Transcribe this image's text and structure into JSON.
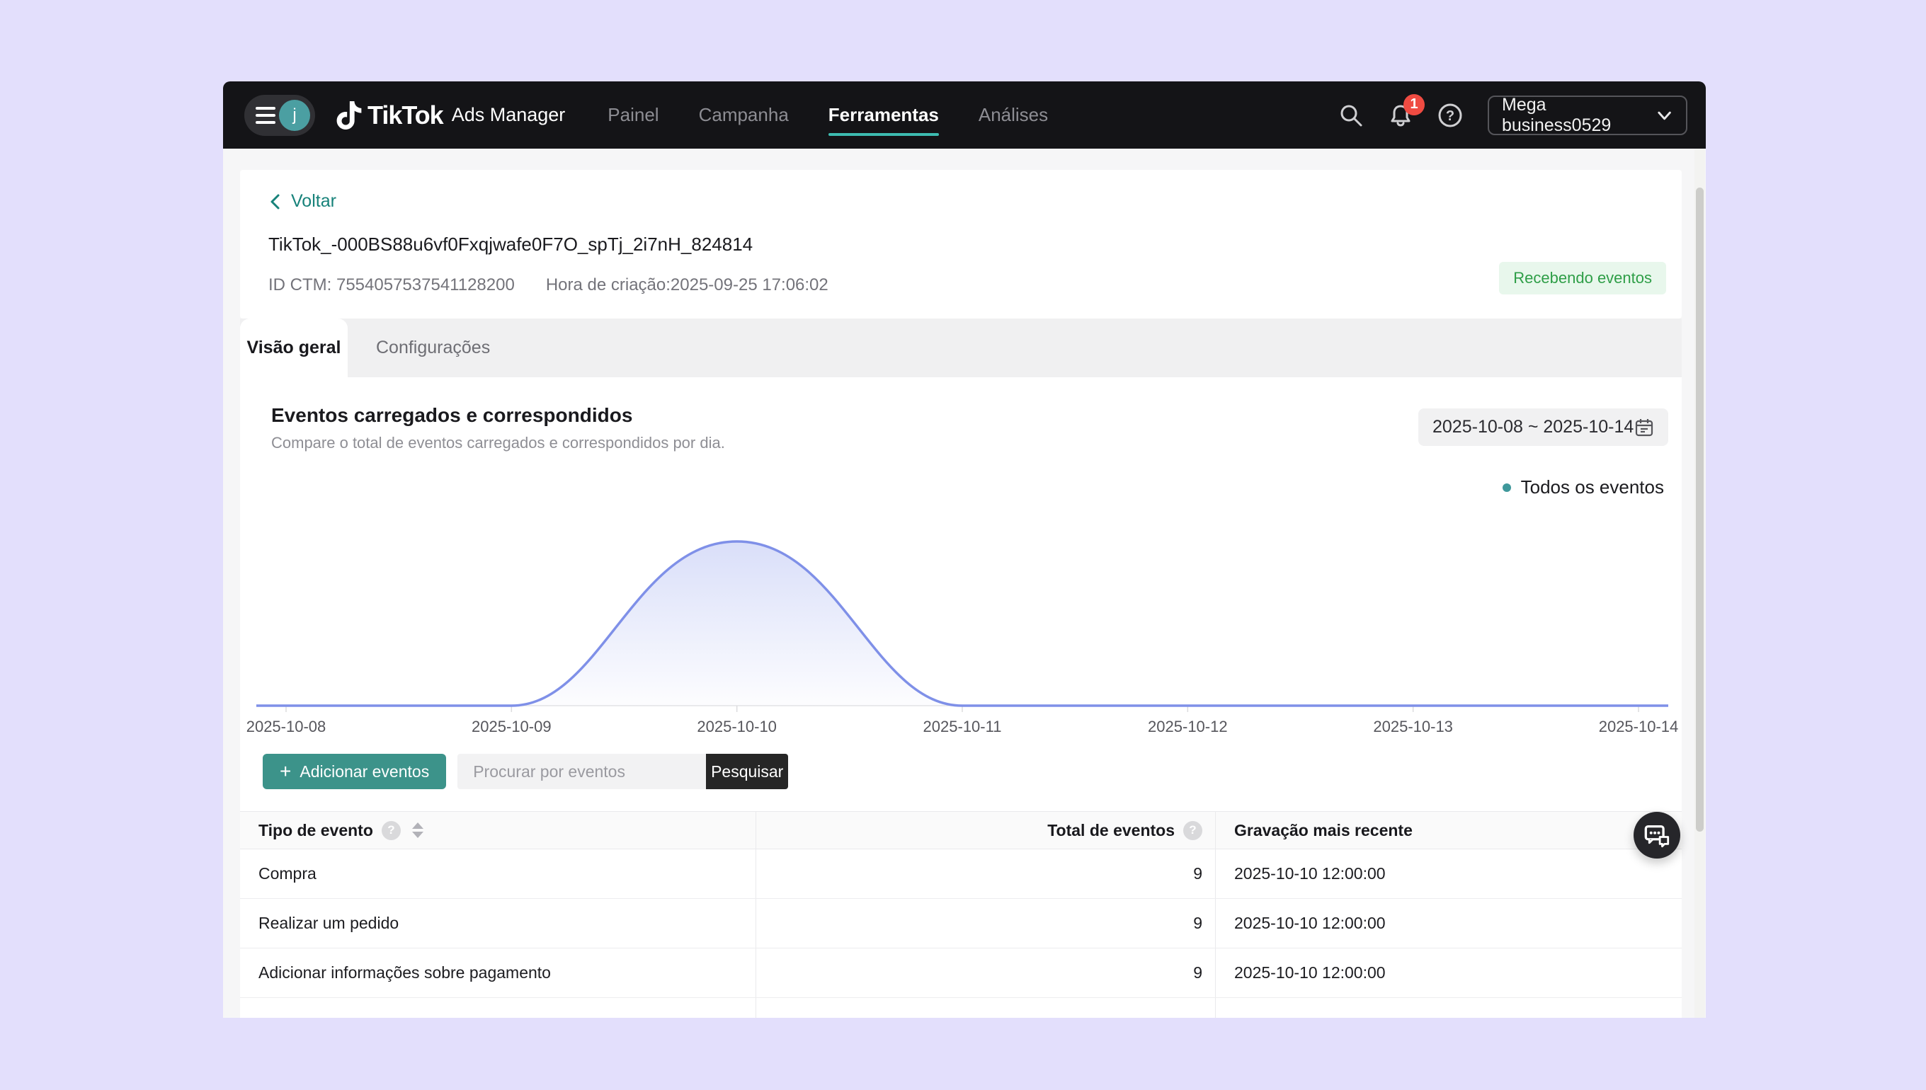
{
  "colors": {
    "desktop_bg": "#e3dffc",
    "navbar_bg": "#141417",
    "accent_teal": "#3c938a",
    "link_teal": "#17827a",
    "tab_underline": "#3dbcb1",
    "line_blue": "#7f90e8",
    "badge_green_bg": "#e8f7ec",
    "badge_green_text": "#2e9e47",
    "notification_red": "#ef4b42",
    "legend_dot": "#3f989b"
  },
  "navbar": {
    "avatar_letter": "j",
    "brand": {
      "name": "TikTok",
      "suffix": "Ads Manager"
    },
    "items": [
      {
        "label": "Painel",
        "active": false
      },
      {
        "label": "Campanha",
        "active": false
      },
      {
        "label": "Ferramentas",
        "active": true
      },
      {
        "label": "Análises",
        "active": false
      }
    ],
    "notification_count": "1",
    "account": "Mega business0529"
  },
  "header": {
    "back_label": "Voltar",
    "title": "TikTok_-000BS88u6vf0Fxqjwafe0F7O_spTj_2i7nH_824814",
    "ctm_id": "ID CTM: 7554057537541128200",
    "created": "Hora de criação:2025-09-25 17:06:02",
    "status_badge": "Recebendo eventos"
  },
  "tabs": [
    {
      "label": "Visão geral",
      "active": true
    },
    {
      "label": "Configurações",
      "active": false
    }
  ],
  "chart_section": {
    "title": "Eventos carregados e correspondidos",
    "subtitle": "Compare o total de eventos carregados e correspondidos por dia.",
    "date_range": "2025-10-08 ~ 2025-10-14",
    "legend_label": "Todos os eventos"
  },
  "chart_data": {
    "type": "line",
    "title": "Eventos carregados e correspondidos",
    "x": [
      "2025-10-08",
      "2025-10-09",
      "2025-10-10",
      "2025-10-11",
      "2025-10-12",
      "2025-10-13",
      "2025-10-14"
    ],
    "series": [
      {
        "name": "Todos os eventos",
        "values": [
          0,
          0,
          9,
          0,
          0,
          0,
          0
        ]
      }
    ],
    "smooth": true,
    "area_fill": true,
    "line_color": "#7f90e8",
    "ylim": [
      0,
      9
    ],
    "grid": false,
    "legend_position": "top-right"
  },
  "actions": {
    "add_icon": "+",
    "add_label": "Adicionar eventos",
    "search_placeholder": "Procurar por eventos",
    "search_button": "Pesquisar"
  },
  "table": {
    "columns": [
      "Tipo de evento",
      "Total de eventos",
      "Gravação mais recente"
    ],
    "rows": [
      {
        "type": "Compra",
        "total": "9",
        "latest": "2025-10-10 12:00:00"
      },
      {
        "type": "Realizar um pedido",
        "total": "9",
        "latest": "2025-10-10 12:00:00"
      },
      {
        "type": "Adicionar informações sobre pagamento",
        "total": "9",
        "latest": "2025-10-10 12:00:00"
      }
    ]
  }
}
